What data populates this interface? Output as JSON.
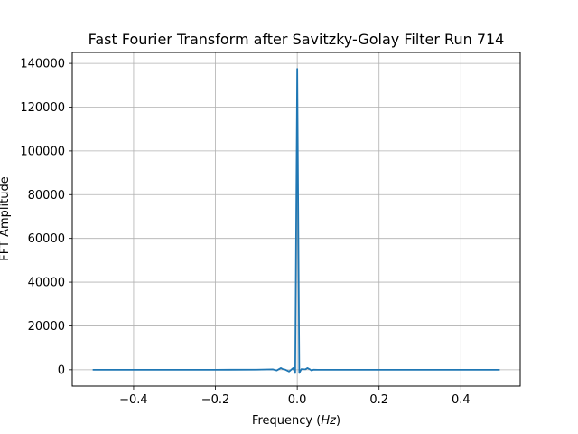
{
  "chart_data": {
    "type": "line",
    "title": "Fast Fourier Transform after Savitzky-Golay Filter Run 714",
    "xlabel_prefix": "Frequency (",
    "xlabel_math": "Hz",
    "xlabel_suffix": ")",
    "ylabel": "FFT Amplitude",
    "xlim": [
      -0.55,
      0.545
    ],
    "ylim": [
      -7500,
      145000
    ],
    "xticks": [
      -0.4,
      -0.2,
      0.0,
      0.2,
      0.4
    ],
    "xtick_labels": [
      "−0.4",
      "−0.2",
      "0.0",
      "0.2",
      "0.4"
    ],
    "yticks": [
      0,
      20000,
      40000,
      60000,
      80000,
      100000,
      120000,
      140000
    ],
    "ytick_labels": [
      "0",
      "20000",
      "40000",
      "60000",
      "80000",
      "100000",
      "120000",
      "140000"
    ],
    "grid": true,
    "series": [
      {
        "color": "#1f77b4",
        "x": [
          -0.5,
          -0.4,
          -0.3,
          -0.2,
          -0.1,
          -0.06,
          -0.05,
          -0.04,
          -0.035,
          -0.03,
          -0.02,
          -0.01,
          -0.005,
          0.0,
          0.005,
          0.01,
          0.02,
          0.025,
          0.03,
          0.035,
          0.04,
          0.05,
          0.1,
          0.2,
          0.3,
          0.4,
          0.495
        ],
        "y": [
          0,
          0,
          0,
          0,
          50,
          200,
          -300,
          800,
          300,
          100,
          -800,
          800,
          -1500,
          137500,
          -1500,
          300,
          200,
          800,
          300,
          -300,
          50,
          0,
          0,
          0,
          0,
          0,
          0
        ]
      }
    ]
  }
}
